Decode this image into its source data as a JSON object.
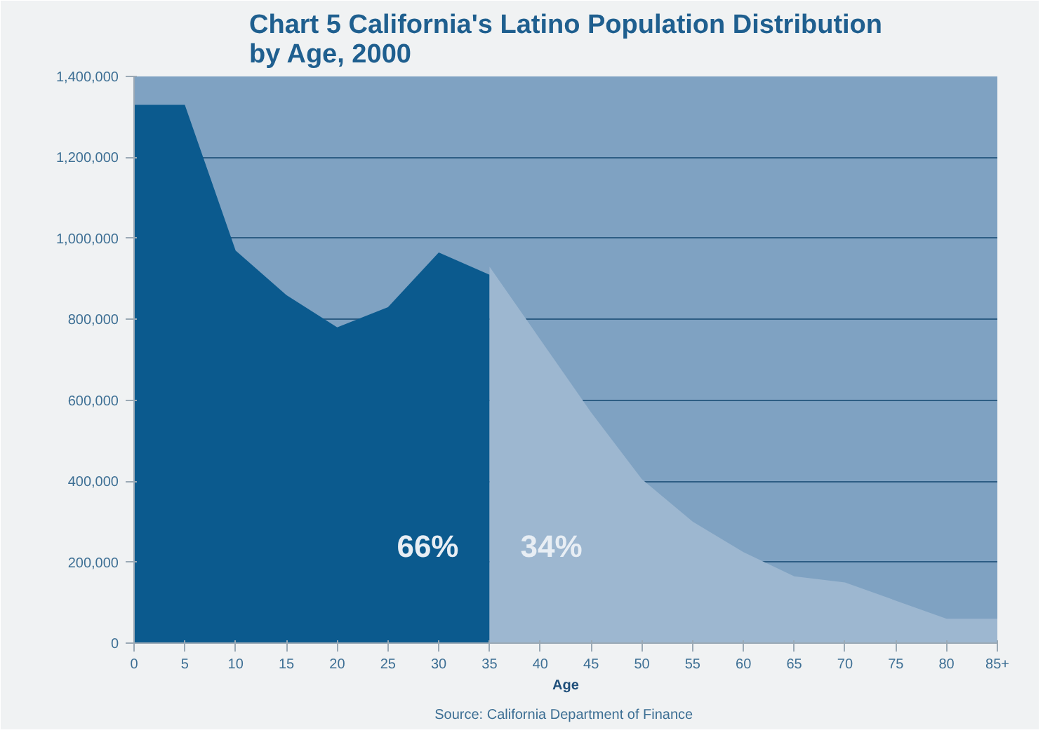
{
  "chart_data": {
    "type": "area",
    "title": "Chart 5 California's Latino Population Distribution\nby Age, 2000",
    "xlabel": "Age",
    "series": [
      {
        "color": "#0b5a8e",
        "x": [
          0,
          5,
          10,
          15,
          20,
          25,
          30,
          35
        ],
        "values": [
          1330000,
          1330000,
          970000,
          860000,
          780000,
          830000,
          965000,
          910000
        ]
      },
      {
        "color": "#9db7d0",
        "x": [
          35,
          40,
          45,
          50,
          55,
          60,
          65,
          70,
          75,
          80,
          85
        ],
        "values": [
          930000,
          750000,
          570000,
          405000,
          300000,
          225000,
          165000,
          150000,
          105000,
          60000,
          60000
        ]
      }
    ],
    "xlim": [
      0,
      85
    ],
    "xticks": [
      0,
      5,
      10,
      15,
      20,
      25,
      30,
      35,
      40,
      45,
      50,
      55,
      60,
      65,
      70,
      75,
      80,
      {
        "value": 85,
        "label": "85+"
      }
    ],
    "ylim": [
      0,
      1400000
    ],
    "yticks": [
      {
        "value": 0,
        "label": "0"
      },
      {
        "value": 200000,
        "label": "200,000"
      },
      {
        "value": 400000,
        "label": "400,000"
      },
      {
        "value": 600000,
        "label": "600,000"
      },
      {
        "value": 800000,
        "label": "800,000"
      },
      {
        "value": 1000000,
        "label": "1,000,000"
      },
      {
        "value": 1200000,
        "label": "1,200,000"
      },
      {
        "value": 1400000,
        "label": "1,400,000"
      }
    ],
    "grid": "y",
    "annotations": [
      "66%",
      "34%",
      "Source:  California Department of Finance"
    ]
  }
}
